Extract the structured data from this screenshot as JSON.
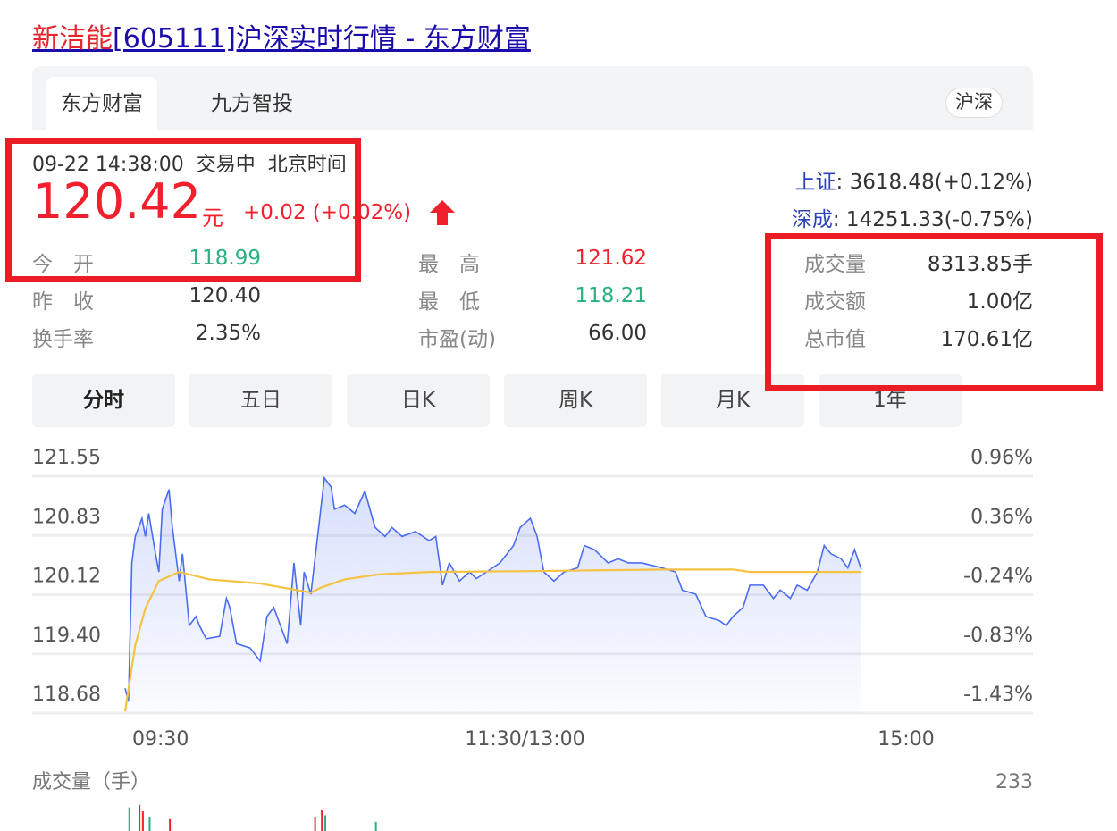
{
  "title": {
    "name": "新洁能",
    "rest": "[605111]沪深实时行情 - 东方财富"
  },
  "tabs": [
    {
      "label": "东方财富",
      "active": true
    },
    {
      "label": "九方智投",
      "active": false
    }
  ],
  "market_badge": "沪深",
  "quote": {
    "datetime": "09-22 14:38:00",
    "status": "交易中",
    "tz": "北京时间",
    "price": "120.42",
    "unit": "元",
    "change": "+0.02",
    "change_pct": "(+0.02%)",
    "direction_icon": "arrow-up-icon",
    "stats": [
      {
        "label": "今　开",
        "value": "118.99",
        "color": "#27b27e"
      },
      {
        "label": "昨　收",
        "value": "120.40",
        "color": "#333333"
      },
      {
        "label": "换手率",
        "value": "2.35%",
        "color": "#333333"
      },
      {
        "label": "最　高",
        "value": "121.62",
        "color": "#f2202c"
      },
      {
        "label": "最　低",
        "value": "118.21",
        "color": "#27b27e"
      },
      {
        "label": "市盈(动)",
        "value": "66.00",
        "color": "#333333"
      },
      {
        "label": "成交量",
        "value": "8313.85手",
        "color": "#333333"
      },
      {
        "label": "成交额",
        "value": "1.00亿",
        "color": "#333333"
      },
      {
        "label": "总市值",
        "value": "170.61亿",
        "color": "#333333"
      }
    ]
  },
  "indices": [
    {
      "name": "上证",
      "value": ": 3618.48(+0.12%)"
    },
    {
      "name": "深成",
      "value": ": 14251.33(-0.75%)"
    }
  ],
  "periods": [
    {
      "label": "分时",
      "active": true
    },
    {
      "label": "五日"
    },
    {
      "label": "日K"
    },
    {
      "label": "周K"
    },
    {
      "label": "月K"
    },
    {
      "label": "1年"
    }
  ],
  "colors": {
    "up": "#f2202c",
    "down": "#27b27e",
    "price_line": "#4a6cf0",
    "avg_line": "#f5c242",
    "highlight": "#ec1c24"
  },
  "chart_data": {
    "type": "line",
    "y_ticks": [
      "121.55",
      "120.83",
      "120.12",
      "119.40",
      "118.68"
    ],
    "pct_ticks": [
      "0.96%",
      "0.36%",
      "-0.24%",
      "-0.83%",
      "-1.43%"
    ],
    "ylim": [
      118.68,
      121.55
    ],
    "x_ticks": [
      "09:30",
      "11:30/13:00",
      "15:00"
    ],
    "grid": true,
    "price": [
      [
        "09:30",
        118.98
      ],
      [
        "09:31",
        118.82
      ],
      [
        "09:32",
        120.5
      ],
      [
        "09:33",
        120.82
      ],
      [
        "09:35",
        121.04
      ],
      [
        "09:36",
        120.82
      ],
      [
        "09:37",
        121.1
      ],
      [
        "09:39",
        120.61
      ],
      [
        "09:40",
        120.39
      ],
      [
        "09:41",
        121.15
      ],
      [
        "09:43",
        121.39
      ],
      [
        "09:44",
        120.93
      ],
      [
        "09:46",
        120.28
      ],
      [
        "09:47",
        120.61
      ],
      [
        "09:49",
        119.74
      ],
      [
        "09:51",
        119.85
      ],
      [
        "09:52",
        119.74
      ],
      [
        "09:54",
        119.58
      ],
      [
        "09:58",
        119.61
      ],
      [
        "10:00",
        120.07
      ],
      [
        "10:01",
        119.96
      ],
      [
        "10:03",
        119.52
      ],
      [
        "10:07",
        119.47
      ],
      [
        "10:10",
        119.31
      ],
      [
        "10:12",
        119.85
      ],
      [
        "10:14",
        119.96
      ],
      [
        "10:16",
        119.74
      ],
      [
        "10:18",
        119.52
      ],
      [
        "10:20",
        120.5
      ],
      [
        "10:22",
        119.74
      ],
      [
        "10:23",
        120.39
      ],
      [
        "10:25",
        120.12
      ],
      [
        "10:27",
        120.82
      ],
      [
        "10:29",
        121.53
      ],
      [
        "10:31",
        121.42
      ],
      [
        "10:32",
        121.15
      ],
      [
        "10:35",
        121.2
      ],
      [
        "10:38",
        121.1
      ],
      [
        "10:41",
        121.37
      ],
      [
        "10:44",
        120.93
      ],
      [
        "10:47",
        120.82
      ],
      [
        "10:49",
        120.93
      ],
      [
        "10:52",
        120.82
      ],
      [
        "10:56",
        120.88
      ],
      [
        "11:00",
        120.77
      ],
      [
        "11:02",
        120.82
      ],
      [
        "11:04",
        120.23
      ],
      [
        "11:06",
        120.5
      ],
      [
        "11:09",
        120.28
      ],
      [
        "11:12",
        120.39
      ],
      [
        "11:14",
        120.31
      ],
      [
        "11:17",
        120.39
      ],
      [
        "11:21",
        120.5
      ],
      [
        "11:25",
        120.71
      ],
      [
        "11:27",
        120.93
      ],
      [
        "11:30",
        121.04
      ],
      [
        "13:02",
        120.82
      ],
      [
        "13:04",
        120.39
      ],
      [
        "13:07",
        120.28
      ],
      [
        "13:10",
        120.39
      ],
      [
        "13:14",
        120.44
      ],
      [
        "13:16",
        120.71
      ],
      [
        "13:19",
        120.66
      ],
      [
        "13:23",
        120.5
      ],
      [
        "13:26",
        120.55
      ],
      [
        "13:29",
        120.5
      ],
      [
        "13:33",
        120.5
      ],
      [
        "13:39",
        120.44
      ],
      [
        "13:43",
        120.39
      ],
      [
        "13:45",
        120.17
      ],
      [
        "13:49",
        120.12
      ],
      [
        "13:52",
        119.85
      ],
      [
        "13:56",
        119.8
      ],
      [
        "13:58",
        119.74
      ],
      [
        "14:00",
        119.85
      ],
      [
        "14:03",
        119.96
      ],
      [
        "14:05",
        120.23
      ],
      [
        "14:09",
        120.23
      ],
      [
        "14:12",
        120.07
      ],
      [
        "14:14",
        120.17
      ],
      [
        "14:17",
        120.07
      ],
      [
        "14:19",
        120.23
      ],
      [
        "14:22",
        120.17
      ],
      [
        "14:25",
        120.39
      ],
      [
        "14:27",
        120.71
      ],
      [
        "14:29",
        120.61
      ],
      [
        "14:32",
        120.55
      ],
      [
        "14:34",
        120.44
      ],
      [
        "14:36",
        120.66
      ],
      [
        "14:38",
        120.42
      ]
    ],
    "average": [
      [
        "09:30",
        118.7
      ],
      [
        "09:33",
        119.5
      ],
      [
        "09:36",
        119.95
      ],
      [
        "09:40",
        120.28
      ],
      [
        "09:46",
        120.39
      ],
      [
        "09:55",
        120.3
      ],
      [
        "10:10",
        120.25
      ],
      [
        "10:25",
        120.14
      ],
      [
        "10:28",
        120.2
      ],
      [
        "10:35",
        120.3
      ],
      [
        "10:45",
        120.36
      ],
      [
        "11:00",
        120.39
      ],
      [
        "11:30",
        120.4
      ],
      [
        "13:40",
        120.42
      ],
      [
        "14:00",
        120.42
      ],
      [
        "14:05",
        120.39
      ],
      [
        "14:38",
        120.39
      ]
    ],
    "volume_label": "成交量（手）",
    "volume_max": "233",
    "volume": [
      [
        "09:31",
        180,
        "down"
      ],
      [
        "09:34",
        200,
        "up"
      ],
      [
        "09:35",
        150,
        "up"
      ],
      [
        "09:37",
        110,
        "down"
      ],
      [
        "09:43",
        90,
        "up"
      ],
      [
        "10:26",
        110,
        "up"
      ],
      [
        "10:28",
        160,
        "up"
      ],
      [
        "10:29",
        120,
        "down"
      ],
      [
        "10:44",
        70,
        "down"
      ]
    ]
  }
}
